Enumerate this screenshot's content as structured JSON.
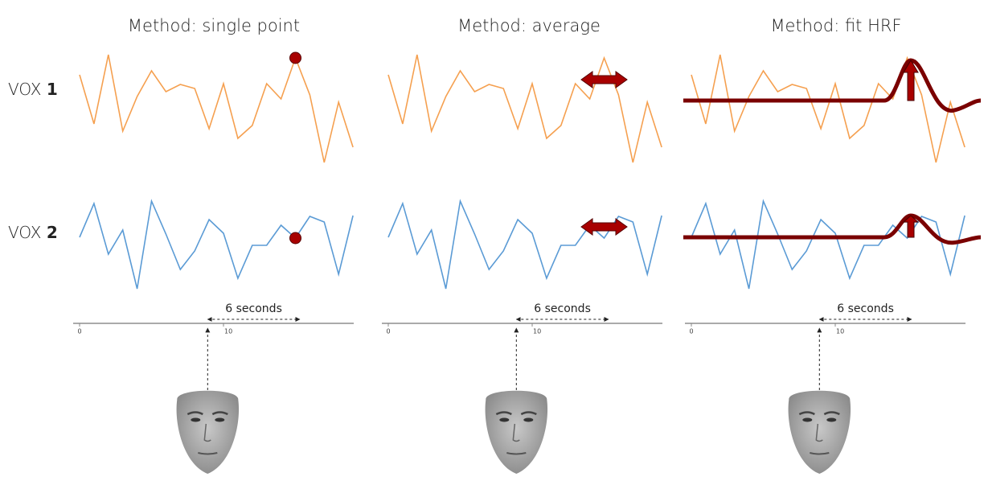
{
  "panels": [
    {
      "title": "Method: single point"
    },
    {
      "title": "Method: average"
    },
    {
      "title": "Method: fit HRF"
    }
  ],
  "rows": [
    {
      "label": "VOX",
      "number": "1",
      "color": "#f5a050",
      "values": [
        3.2,
        -2.9,
        5.7,
        -3.8,
        0.5,
        3.7,
        1.1,
        2.0,
        1.5,
        -3.5,
        2.1,
        -4.7,
        -3.1,
        2.1,
        0.2,
        5.3,
        0.7,
        -7.7,
        -0.2,
        -5.8
      ]
    },
    {
      "label": "VOX",
      "number": "2",
      "color": "#5b9bd5",
      "values": [
        0.5,
        4.7,
        -1.6,
        1.4,
        -5.9,
        5.0,
        0.9,
        -3.5,
        -1.2,
        2.7,
        1.0,
        -4.6,
        -0.5,
        -0.5,
        2.0,
        0.4,
        3.1,
        2.4,
        -4.1,
        3.2
      ]
    }
  ],
  "axis": {
    "xticks": [
      0,
      10
    ],
    "span_label": "6 seconds"
  }
}
